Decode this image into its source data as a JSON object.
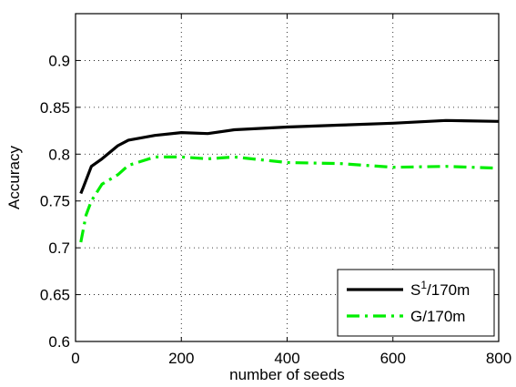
{
  "chart_data": {
    "type": "line",
    "xlabel": "number of seeds",
    "ylabel": "Accuracy",
    "xlim": [
      0,
      800
    ],
    "ylim": [
      0.6,
      0.95
    ],
    "xticks": [
      0,
      200,
      400,
      600,
      800
    ],
    "yticks": [
      0.6,
      0.65,
      0.7,
      0.75,
      0.8,
      0.85,
      0.9
    ],
    "xtick_labels": [
      "0",
      "200",
      "400",
      "600",
      "800"
    ],
    "ytick_labels": [
      "0.6",
      "0.65",
      "0.7",
      "0.75",
      "0.8",
      "0.85",
      "0.9"
    ],
    "grid": true,
    "legend_position": "bottom-right",
    "series": [
      {
        "name": "S1/170m",
        "name_base": "S",
        "name_sup": "1",
        "name_suffix": "/170m",
        "color": "#000000",
        "style": "solid",
        "x": [
          10,
          15,
          30,
          50,
          80,
          100,
          150,
          200,
          250,
          300,
          400,
          500,
          600,
          700,
          800
        ],
        "y": [
          0.758,
          0.765,
          0.787,
          0.795,
          0.809,
          0.815,
          0.82,
          0.823,
          0.822,
          0.826,
          0.829,
          0.831,
          0.833,
          0.836,
          0.835
        ]
      },
      {
        "name": "G/170m",
        "color": "#00ee00",
        "style": "dashdot",
        "x": [
          10,
          20,
          30,
          50,
          80,
          100,
          150,
          200,
          250,
          300,
          400,
          500,
          600,
          700,
          800
        ],
        "y": [
          0.706,
          0.735,
          0.75,
          0.768,
          0.778,
          0.788,
          0.797,
          0.797,
          0.795,
          0.797,
          0.791,
          0.79,
          0.786,
          0.787,
          0.785
        ]
      }
    ]
  }
}
